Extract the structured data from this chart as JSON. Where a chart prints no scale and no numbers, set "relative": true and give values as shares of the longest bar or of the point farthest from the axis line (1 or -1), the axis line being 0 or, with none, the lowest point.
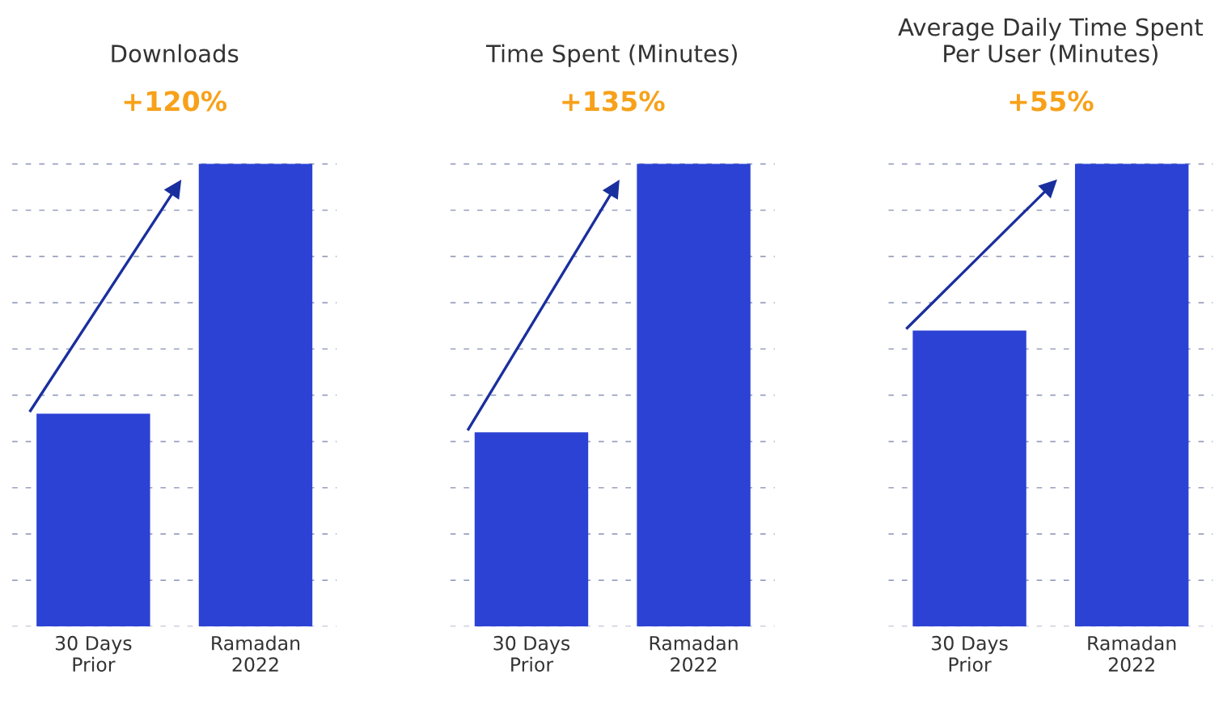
{
  "chart_data": [
    {
      "type": "bar",
      "title": "Downloads",
      "categories": [
        "30 Days\nPrior",
        "Ramadan\n2022"
      ],
      "values": [
        0.46,
        1
      ],
      "color": "#2c42d4",
      "relative": true,
      "grid": "y",
      "annotations": [
        "+120%"
      ]
    },
    {
      "type": "bar",
      "title": "Time Spent (Minutes)",
      "categories": [
        "30 Days\nPrior",
        "Ramadan\n2022"
      ],
      "values": [
        0.42,
        1
      ],
      "color": "#2c42d4",
      "relative": true,
      "grid": "y",
      "annotations": [
        "+135%"
      ]
    },
    {
      "type": "bar",
      "title": "Average Daily Time Spent\nPer User (Minutes)",
      "categories": [
        "30 Days\nPrior",
        "Ramadan\n2022"
      ],
      "values": [
        0.64,
        1
      ],
      "color": "#2c42d4",
      "relative": true,
      "grid": "y",
      "annotations": [
        "+55%"
      ]
    }
  ]
}
